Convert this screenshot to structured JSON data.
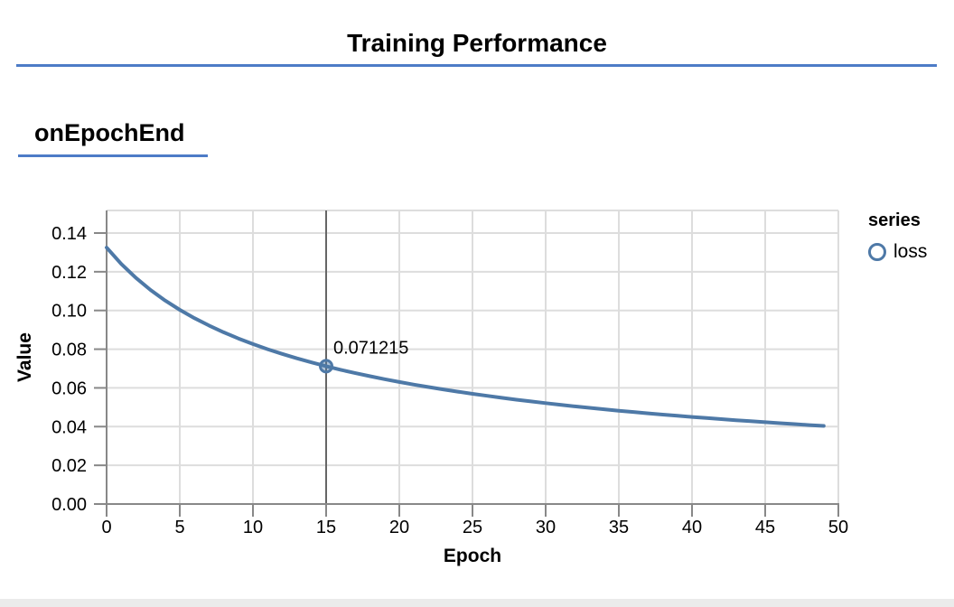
{
  "header": {
    "title": "Training Performance"
  },
  "section": {
    "heading": "onEpochEnd"
  },
  "theme": {
    "accent_blue": "#4d7cc7",
    "bottom_bar_gray": "#ebebeb"
  },
  "chart_data": {
    "type": "line",
    "title": "",
    "xlabel": "Epoch",
    "ylabel": "Value",
    "xlim": [
      0,
      50
    ],
    "ylim": [
      0,
      0.14
    ],
    "grid": true,
    "legend": {
      "title": "series",
      "position": "right",
      "items": [
        {
          "label": "loss",
          "marker": "open-circle"
        }
      ]
    },
    "xticks": [
      {
        "v": 0,
        "label": "0"
      },
      {
        "v": 5,
        "label": "5"
      },
      {
        "v": 10,
        "label": "10"
      },
      {
        "v": 15,
        "label": "15"
      },
      {
        "v": 20,
        "label": "20"
      },
      {
        "v": 25,
        "label": "25"
      },
      {
        "v": 30,
        "label": "30"
      },
      {
        "v": 35,
        "label": "35"
      },
      {
        "v": 40,
        "label": "40"
      },
      {
        "v": 45,
        "label": "45"
      },
      {
        "v": 50,
        "label": "50"
      }
    ],
    "yticks": [
      {
        "v": 0,
        "label": "0.00"
      },
      {
        "v": 0.02,
        "label": "0.02"
      },
      {
        "v": 0.04,
        "label": "0.04"
      },
      {
        "v": 0.06,
        "label": "0.06"
      },
      {
        "v": 0.08,
        "label": "0.08"
      },
      {
        "v": 0.1,
        "label": "0.10"
      },
      {
        "v": 0.12,
        "label": "0.12"
      },
      {
        "v": 0.14,
        "label": "0.14"
      }
    ],
    "series": [
      {
        "name": "loss",
        "x_start": 0,
        "x_step": 1,
        "values": [
          0.13249,
          0.12404,
          0.11684,
          0.11061,
          0.10516,
          0.10035,
          0.09606,
          0.0922,
          0.08872,
          0.08555,
          0.08265,
          0.08,
          0.07754,
          0.07527,
          0.07316,
          0.071215,
          0.06936,
          0.06764,
          0.06602,
          0.0645,
          0.06307,
          0.06171,
          0.06042,
          0.0592,
          0.05804,
          0.05694,
          0.05589,
          0.05488,
          0.05392,
          0.05301,
          0.05213,
          0.05128,
          0.05047,
          0.0497,
          0.04895,
          0.04823,
          0.04754,
          0.04687,
          0.04622,
          0.0456,
          0.045,
          0.04442,
          0.04385,
          0.0433,
          0.04278,
          0.04226,
          0.04176,
          0.04128,
          0.04081,
          0.04036
        ]
      }
    ],
    "selected_point": {
      "x": 15,
      "y": 0.071215,
      "tooltip": "0.071215"
    },
    "colors": {
      "line": "#4e79a7",
      "grid": "#dddddd",
      "axis": "#888888",
      "crosshair": "#666666",
      "text": "#000000"
    }
  }
}
